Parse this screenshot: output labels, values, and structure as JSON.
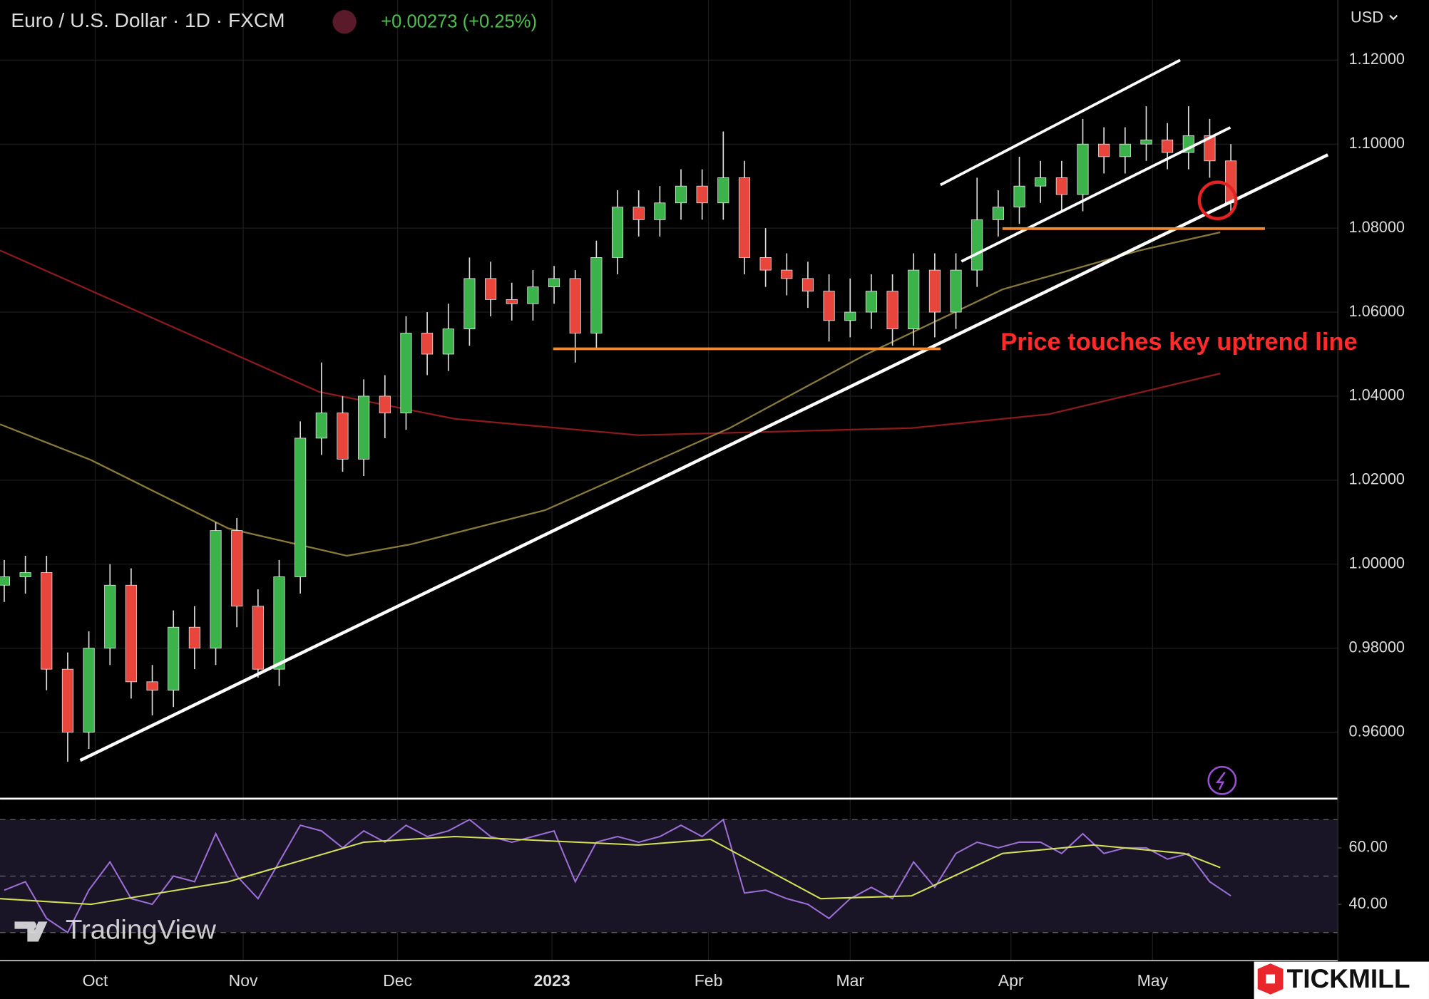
{
  "header": {
    "symbol": "Euro / U.S. Dollar · 1D · FXCM",
    "change": "+0.00273 (+0.25%)",
    "currency": "USD",
    "watermark": "TradingView",
    "brand": "TICKMILL"
  },
  "chart_data": [
    {
      "type": "candlestick",
      "annotation": "Price touches key uptrend line",
      "up_color": "#3cb34a",
      "down_color": "#e8453c",
      "grid": true,
      "open": [
        0.995,
        0.997,
        0.998,
        0.975,
        0.96,
        0.98,
        0.995,
        0.972,
        0.97,
        0.985,
        0.98,
        1.008,
        0.99,
        0.975,
        0.997,
        1.03,
        1.036,
        1.025,
        1.04,
        1.036,
        1.055,
        1.05,
        1.056,
        1.068,
        1.063,
        1.062,
        1.066,
        1.068,
        1.055,
        1.073,
        1.085,
        1.082,
        1.086,
        1.09,
        1.086,
        1.092,
        1.073,
        1.07,
        1.068,
        1.065,
        1.058,
        1.06,
        1.065,
        1.056,
        1.07,
        1.06,
        1.07,
        1.082,
        1.085,
        1.09,
        1.092,
        1.088,
        1.1,
        1.097,
        1.1,
        1.101,
        1.098,
        1.102,
        1.096
      ],
      "high": [
        1.001,
        1.002,
        1.002,
        0.979,
        0.984,
        1.0,
        0.999,
        0.976,
        0.989,
        0.99,
        1.01,
        1.011,
        0.994,
        1.001,
        1.034,
        1.048,
        1.04,
        1.044,
        1.045,
        1.059,
        1.06,
        1.062,
        1.073,
        1.072,
        1.067,
        1.07,
        1.071,
        1.07,
        1.077,
        1.089,
        1.089,
        1.09,
        1.094,
        1.094,
        1.103,
        1.096,
        1.08,
        1.074,
        1.072,
        1.069,
        1.068,
        1.069,
        1.069,
        1.074,
        1.074,
        1.074,
        1.092,
        1.089,
        1.097,
        1.096,
        1.096,
        1.106,
        1.104,
        1.104,
        1.109,
        1.105,
        1.109,
        1.106,
        1.1
      ],
      "low": [
        0.991,
        0.993,
        0.97,
        0.953,
        0.956,
        0.976,
        0.968,
        0.964,
        0.966,
        0.975,
        0.976,
        0.985,
        0.973,
        0.971,
        0.993,
        1.026,
        1.022,
        1.021,
        1.03,
        1.032,
        1.045,
        1.046,
        1.052,
        1.059,
        1.058,
        1.058,
        1.062,
        1.048,
        1.051,
        1.069,
        1.078,
        1.078,
        1.082,
        1.082,
        1.082,
        1.069,
        1.066,
        1.064,
        1.061,
        1.053,
        1.054,
        1.056,
        1.052,
        1.052,
        1.054,
        1.056,
        1.066,
        1.078,
        1.081,
        1.086,
        1.084,
        1.084,
        1.093,
        1.093,
        1.096,
        1.094,
        1.094,
        1.092,
        1.084
      ],
      "close": [
        0.997,
        0.998,
        0.975,
        0.96,
        0.98,
        0.995,
        0.972,
        0.97,
        0.985,
        0.98,
        1.008,
        0.99,
        0.975,
        0.997,
        1.03,
        1.036,
        1.025,
        1.04,
        1.036,
        1.055,
        1.05,
        1.056,
        1.068,
        1.063,
        1.062,
        1.066,
        1.068,
        1.055,
        1.073,
        1.085,
        1.082,
        1.086,
        1.09,
        1.086,
        1.092,
        1.073,
        1.07,
        1.068,
        1.065,
        1.058,
        1.06,
        1.065,
        1.056,
        1.07,
        1.06,
        1.07,
        1.082,
        1.085,
        1.09,
        1.092,
        1.088,
        1.1,
        1.097,
        1.1,
        1.101,
        1.098,
        1.102,
        1.096,
        1.086
      ],
      "overlays": [
        {
          "color": "#8b1a1a",
          "x": [
            -0.2,
            14.9,
            21.3,
            30.0,
            42.9,
            49.4,
            57.5
          ],
          "values": [
            1.0747,
            1.041,
            1.0346,
            1.0307,
            1.0324,
            1.0357,
            1.0454
          ]
        },
        {
          "color": "#8a7a3a",
          "x": [
            -0.2,
            4.1,
            10.6,
            16.2,
            19.2,
            25.6,
            34.3,
            40.7,
            47.2,
            53.7,
            57.5
          ],
          "values": [
            1.0333,
            1.0248,
            1.0085,
            1.002,
            1.0047,
            1.0129,
            1.0324,
            1.0498,
            1.0654,
            1.0747,
            1.079
          ]
        }
      ],
      "xlim": [
        -0.2,
        63.06
      ],
      "xticks": [
        {
          "value": 4.3,
          "label": "Oct"
        },
        {
          "value": 11.3,
          "label": "Nov"
        },
        {
          "value": 18.6,
          "label": "Dec"
        },
        {
          "value": 25.9,
          "label": "2023"
        },
        {
          "value": 33.3,
          "label": "Feb"
        },
        {
          "value": 40.0,
          "label": "Mar"
        },
        {
          "value": 47.6,
          "label": "Apr"
        },
        {
          "value": 54.3,
          "label": "May"
        }
      ],
      "ylim": [
        0.9444,
        1.1343
      ],
      "yticks": [
        {
          "value": 0.96,
          "label": "0.96000"
        },
        {
          "value": 0.98,
          "label": "0.98000"
        },
        {
          "value": 1.0,
          "label": "1.00000"
        },
        {
          "value": 1.02,
          "label": "1.02000"
        },
        {
          "value": 1.04,
          "label": "1.04000"
        },
        {
          "value": 1.06,
          "label": "1.06000"
        },
        {
          "value": 1.08,
          "label": "1.08000"
        },
        {
          "value": 1.1,
          "label": "1.10000"
        },
        {
          "value": 1.12,
          "label": "1.12000"
        }
      ]
    },
    {
      "type": "line",
      "xlim": [
        -0.2,
        63.06
      ],
      "ylim": [
        20,
        77.1
      ],
      "levels": [
        30,
        50,
        70
      ],
      "yticks": [
        {
          "value": 40,
          "label": "40.00"
        },
        {
          "value": 60,
          "label": "60.00"
        }
      ],
      "series": [
        {
          "color": "#9b6fd6",
          "values": [
            45,
            48,
            35,
            30,
            45,
            55,
            42,
            40,
            50,
            48,
            65,
            50,
            42,
            55,
            68,
            66,
            60,
            66,
            62,
            68,
            64,
            66,
            70,
            64,
            62,
            64,
            66,
            48,
            62,
            64,
            62,
            64,
            68,
            64,
            70,
            44,
            45,
            42,
            40,
            35,
            42,
            46,
            42,
            55,
            46,
            58,
            62,
            60,
            62,
            62,
            58,
            65,
            58,
            60,
            60,
            56,
            58,
            48,
            43
          ]
        },
        {
          "color": "#d4e157",
          "x": [
            -0.2,
            4.1,
            10.6,
            17.0,
            21.3,
            30.0,
            33.4,
            38.6,
            42.9,
            47.2,
            51.5,
            55.8,
            57.5
          ],
          "values": [
            42,
            40,
            48,
            62,
            64,
            61,
            63,
            42,
            43,
            58,
            61,
            58,
            53
          ]
        }
      ]
    }
  ]
}
